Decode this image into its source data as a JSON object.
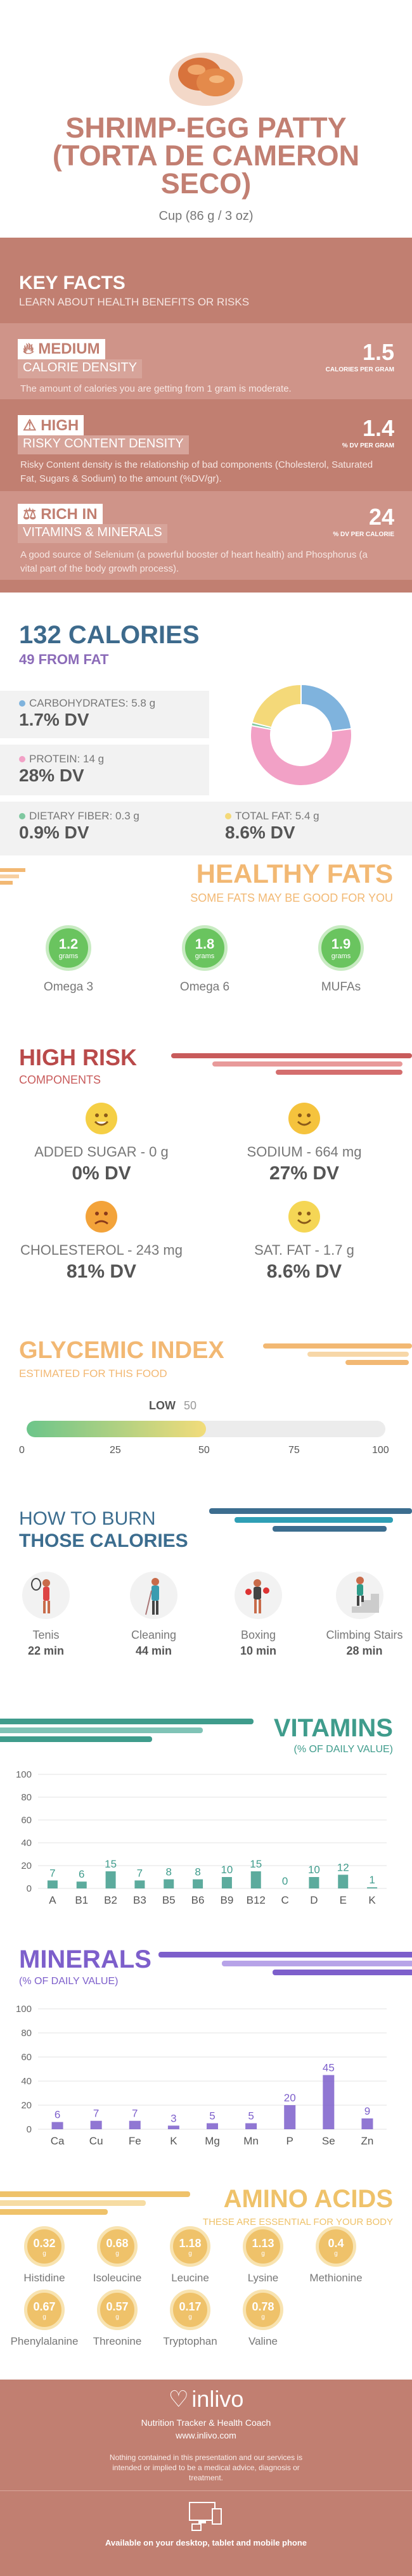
{
  "header": {
    "title": "SHRIMP-EGG PATTY (TORTA DE CAMERON SECO)",
    "serving": "Cup (86 g / 3 oz)"
  },
  "key_facts": {
    "title": "KEY FACTS",
    "subtitle": "LEARN ABOUT HEALTH BENEFITS OR RISKS",
    "calorie_density": {
      "level": "MEDIUM",
      "label": "CALORIE DENSITY",
      "value": "1.5",
      "unit": "CALORIES PER GRAM",
      "desc": "The amount of calories you are getting from 1 gram is moderate."
    },
    "risky_density": {
      "level": "HIGH",
      "label": "RISKY CONTENT DENSITY",
      "value": "1.4",
      "unit": "% DV PER GRAM",
      "desc": "Risky Content density is the relationship of bad components (Cholesterol, Saturated Fat, Sugars & Sodium) to the amount (%DV/gr)."
    },
    "rich": {
      "level": "RICH IN",
      "label": "VITAMINS & MINERALS",
      "value": "24",
      "unit": "% DV PER CALORIE",
      "desc": "A good source of Selenium (a powerful booster of heart health) and Phosphorus (a vital part of the body growth process)."
    }
  },
  "calories": {
    "title": "132 CALORIES",
    "subtitle": "49 FROM FAT",
    "items": [
      {
        "label": "CARBOHYDRATES: 5.8 g",
        "dv": "1.7% DV",
        "color": "#7fb3dd"
      },
      {
        "label": "PROTEIN: 14 g",
        "dv": "28% DV",
        "color": "#f2a1c6"
      },
      {
        "label": "DIETARY FIBER: 0.3 g",
        "dv": "0.9% DV",
        "color": "#7fc8a0"
      },
      {
        "label": "TOTAL FAT: 5.4 g",
        "dv": "8.6% DV",
        "color": "#f4d979"
      }
    ],
    "donut": [
      {
        "name": "carbs",
        "value": 23,
        "color": "#7fb3dd"
      },
      {
        "name": "protein",
        "value": 55,
        "color": "#f2a1c6"
      },
      {
        "name": "fiber",
        "value": 1,
        "color": "#7fc8a0"
      },
      {
        "name": "fat",
        "value": 21,
        "color": "#f4d979"
      }
    ]
  },
  "healthy_fats": {
    "title": "HEALTHY FATS",
    "subtitle": "SOME FATS MAY BE GOOD FOR YOU",
    "items": [
      {
        "value": "1.2",
        "unit": "grams",
        "label": "Omega 3"
      },
      {
        "value": "1.8",
        "unit": "grams",
        "label": "Omega 6"
      },
      {
        "value": "1.9",
        "unit": "grams",
        "label": "MUFAs"
      }
    ]
  },
  "high_risk": {
    "title": "HIGH RISK",
    "subtitle": "COMPONENTS",
    "items": [
      {
        "label": "ADDED SUGAR - 0 g",
        "dv": "0% DV",
        "face": "happy",
        "color": "#f5cf45"
      },
      {
        "label": "SODIUM - 664 mg",
        "dv": "27% DV",
        "face": "happy",
        "color": "#f5c33d"
      },
      {
        "label": "CHOLESTEROL - 243 mg",
        "dv": "81% DV",
        "face": "sad",
        "color": "#f3a33a"
      },
      {
        "label": "SAT. FAT - 1.7 g",
        "dv": "8.6% DV",
        "face": "happy",
        "color": "#f5d655"
      }
    ]
  },
  "glycemic": {
    "title": "GLYCEMIC INDEX",
    "subtitle": "ESTIMATED FOR THIS FOOD",
    "level": "LOW",
    "value": 50,
    "ticks": [
      "0",
      "25",
      "50",
      "75",
      "100"
    ]
  },
  "burn": {
    "title1": "HOW TO BURN",
    "title2": "THOSE CALORIES",
    "activities": [
      {
        "name": "Tenis",
        "minutes": "22 min"
      },
      {
        "name": "Cleaning",
        "minutes": "44 min"
      },
      {
        "name": "Boxing",
        "minutes": "10 min"
      },
      {
        "name": "Climbing Stairs",
        "minutes": "28 min"
      }
    ]
  },
  "vitamins": {
    "title": "VITAMINS",
    "subtitle": "(% OF DAILY VALUE)",
    "chart_data": {
      "type": "bar",
      "categories": [
        "A",
        "B1",
        "B2",
        "B3",
        "B5",
        "B6",
        "B9",
        "B12",
        "C",
        "D",
        "E",
        "K"
      ],
      "values": [
        7,
        6,
        15,
        7,
        8,
        8,
        10,
        15,
        0,
        10,
        12,
        1
      ],
      "ylim": [
        0,
        100
      ],
      "yticks": [
        "0",
        "20",
        "40",
        "60",
        "80",
        "100"
      ],
      "color": "#3f9c8c"
    }
  },
  "minerals": {
    "title": "MINERALS",
    "subtitle": "(% OF DAILY VALUE)",
    "chart_data": {
      "type": "bar",
      "categories": [
        "Ca",
        "Cu",
        "Fe",
        "K",
        "Mg",
        "Mn",
        "P",
        "Se",
        "Zn"
      ],
      "values": [
        6,
        7,
        7,
        3,
        5,
        5,
        20,
        45,
        9
      ],
      "ylim": [
        0,
        100
      ],
      "yticks": [
        "0",
        "20",
        "40",
        "60",
        "80",
        "100"
      ],
      "color": "#7d5fcb"
    }
  },
  "amino": {
    "title": "AMINO ACIDS",
    "subtitle": "THESE ARE ESSENTIAL FOR YOUR BODY",
    "unit": "g",
    "items": [
      {
        "value": "0.32",
        "name": "Histidine"
      },
      {
        "value": "0.68",
        "name": "Isoleucine"
      },
      {
        "value": "1.18",
        "name": "Leucine"
      },
      {
        "value": "1.13",
        "name": "Lysine"
      },
      {
        "value": "0.4",
        "name": "Methionine"
      },
      {
        "value": "0.67",
        "name": "Phenylalanine"
      },
      {
        "value": "0.57",
        "name": "Threonine"
      },
      {
        "value": "0.17",
        "name": "Tryptophan"
      },
      {
        "value": "0.78",
        "name": "Valine"
      }
    ]
  },
  "footer": {
    "brand": "inlivo",
    "tagline": "Nutrition Tracker & Health Coach",
    "url": "www.inlivo.com",
    "disclaimer": "Nothing contained in this presentation and our services is intended or implied to be a medical advice, diagnosis or treatment.",
    "available": "Available on your desktop, tablet and mobile phone"
  }
}
